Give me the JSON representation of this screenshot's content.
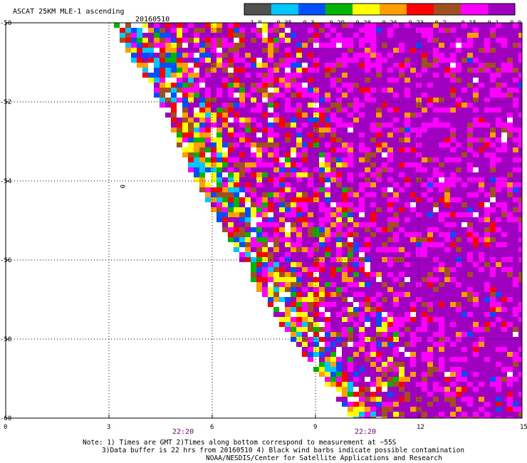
{
  "title": "ASCAT 25KM MLE-1 ascending",
  "date": "20160510",
  "colorbar": {
    "colors": [
      "#505050",
      "#00c8ff",
      "#0050ff",
      "#00b400",
      "#ffff00",
      "#ffa000",
      "#ff0000",
      "#a05020",
      "#ff00ff",
      "#a000c0"
    ],
    "labels": [
      "-1.0",
      "-0.35",
      "-0.3",
      "-0.29",
      "-0.28",
      "-0.26",
      "-0.23",
      "-0.2",
      "-0.15",
      "-0.1",
      "0.0"
    ]
  },
  "axes": {
    "y_ticks": [
      "-50",
      "-52",
      "-54",
      "-56",
      "-58",
      "-60"
    ],
    "x_ticks": [
      "0",
      "3",
      "6",
      "9",
      "12",
      "15"
    ]
  },
  "time_labels": [
    "22:20",
    "22:20"
  ],
  "contour_label": "0",
  "notes": [
    "Note: 1) Times are GMT 2)Times along bottom correspond to measurement at ~55S",
    "3)Data buffer is 22 hrs from 20160510 4) Black wind barbs indicate possible contamination",
    "NOAA/NESDIS/Center for Satellite Applications and Research"
  ],
  "chart_data": {
    "type": "heatmap",
    "title": "ASCAT 25KM MLE-1 ascending",
    "date": "20160510",
    "xlim": [
      0,
      15
    ],
    "ylim": [
      -60,
      -50
    ],
    "x_ticks": [
      0,
      3,
      6,
      9,
      12,
      15
    ],
    "y_ticks": [
      -50,
      -52,
      -54,
      -56,
      -58,
      -60
    ],
    "colorscale_values": [
      -1.0,
      -0.35,
      -0.3,
      -0.29,
      -0.28,
      -0.26,
      -0.23,
      -0.2,
      -0.15,
      -0.1,
      0.0
    ],
    "swath_edge": [
      [
        3.0,
        -50
      ],
      [
        4.5,
        -52
      ],
      [
        5.5,
        -54
      ],
      [
        6.8,
        -56
      ],
      [
        8.3,
        -58
      ],
      [
        10.1,
        -60
      ]
    ]
  }
}
